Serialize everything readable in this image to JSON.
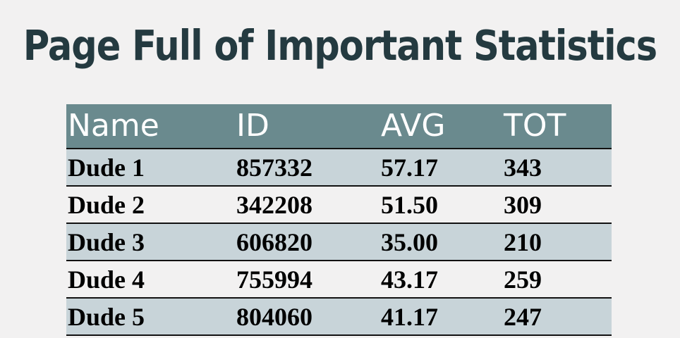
{
  "title": "Page Full of Important Statistics",
  "table": {
    "headers": [
      "Name",
      "ID",
      "AVG",
      "TOT"
    ],
    "rows": [
      [
        "Dude 1",
        "857332",
        "57.17",
        "343"
      ],
      [
        "Dude 2",
        "342208",
        "51.50",
        "309"
      ],
      [
        "Dude 3",
        "606820",
        "35.00",
        "210"
      ],
      [
        "Dude 4",
        "755994",
        "43.17",
        "259"
      ],
      [
        "Dude 5",
        "804060",
        "41.17",
        "247"
      ]
    ]
  },
  "colors": {
    "background": "#f2f1f1",
    "title": "#243a40",
    "header_bg": "#6a8a8e",
    "row_alt_bg": "#c8d4d9",
    "border": "#111111"
  }
}
